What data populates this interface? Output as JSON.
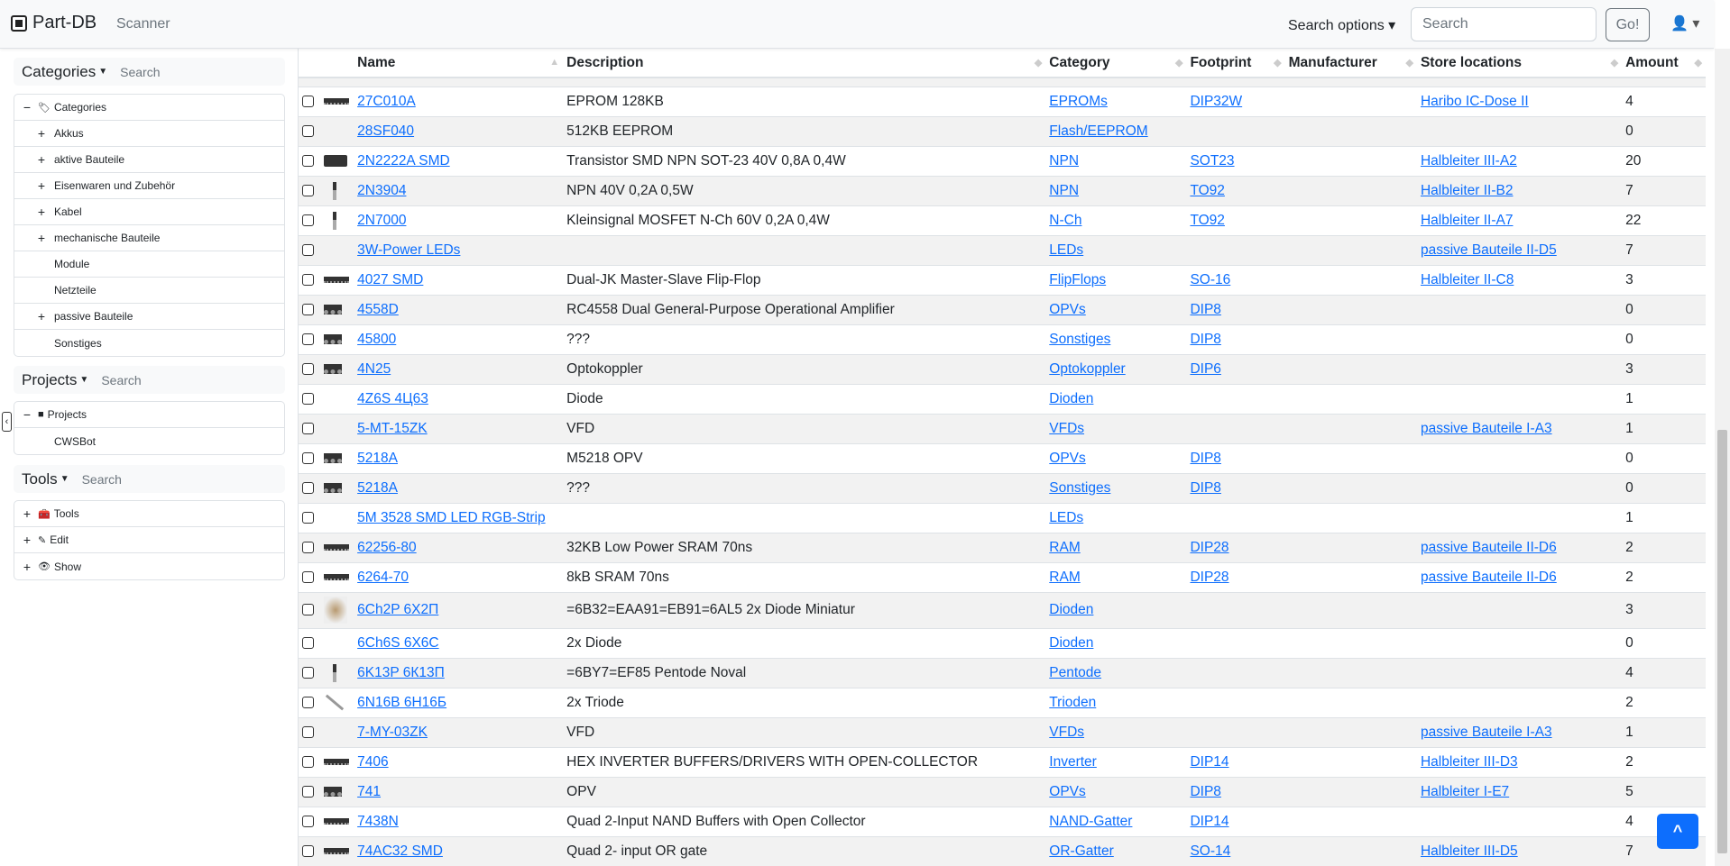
{
  "navbar": {
    "brand": "Part-DB",
    "scanner": "Scanner",
    "search_options": "Search options ▾",
    "search_placeholder": "Search",
    "go": "Go!",
    "user_icon": "user-icon"
  },
  "sidebar": {
    "categories": {
      "title": "Categories",
      "search": "Search",
      "items": [
        {
          "label": "Categories",
          "exp": "−",
          "root": true
        },
        {
          "label": "Akkus",
          "exp": "+"
        },
        {
          "label": "aktive Bauteile",
          "exp": "+"
        },
        {
          "label": "Eisenwaren und Zubehör",
          "exp": "+"
        },
        {
          "label": "Kabel",
          "exp": "+"
        },
        {
          "label": "mechanische Bauteile",
          "exp": "+"
        },
        {
          "label": "Module",
          "exp": ""
        },
        {
          "label": "Netzteile",
          "exp": ""
        },
        {
          "label": "passive Bauteile",
          "exp": "+"
        },
        {
          "label": "Sonstiges",
          "exp": ""
        }
      ]
    },
    "projects": {
      "title": "Projects",
      "search": "Search",
      "items": [
        {
          "label": "Projects",
          "exp": "−",
          "root": true
        },
        {
          "label": "CWSBot",
          "exp": ""
        }
      ]
    },
    "tools": {
      "title": "Tools",
      "search": "Search",
      "items": [
        {
          "label": "Tools",
          "exp": "+",
          "root": true,
          "icon": "🧰"
        },
        {
          "label": "Edit",
          "exp": "+",
          "root": true,
          "icon": "✎"
        },
        {
          "label": "Show",
          "exp": "+",
          "root": true,
          "icon": "👁"
        }
      ]
    }
  },
  "table": {
    "columns": [
      "",
      "",
      "Name",
      "Description",
      "Category",
      "Footprint",
      "Manufacturer",
      "Store locations",
      "Amount"
    ],
    "rows": [
      {
        "thumb": "dip",
        "name": "27C010A",
        "desc": "EPROM 128KB",
        "cat": "EPROMs",
        "fp": "DIP32W",
        "mfr": "",
        "loc": "Haribo IC-Dose II",
        "amount": "4"
      },
      {
        "thumb": "",
        "name": "28SF040",
        "desc": "512KB EEPROM",
        "cat": "Flash/EEPROM",
        "fp": "",
        "mfr": "",
        "loc": "",
        "amount": "0"
      },
      {
        "thumb": "sot",
        "name": "2N2222A SMD",
        "desc": "Transistor SMD NPN SOT-23 40V 0,8A 0,4W",
        "cat": "NPN",
        "fp": "SOT23",
        "mfr": "",
        "loc": "Halbleiter III-A2",
        "amount": "20"
      },
      {
        "thumb": "to92",
        "name": "2N3904",
        "desc": "NPN 40V 0,2A 0,5W",
        "cat": "NPN",
        "fp": "TO92",
        "mfr": "",
        "loc": "Halbleiter II-B2",
        "amount": "7"
      },
      {
        "thumb": "to92",
        "name": "2N7000",
        "desc": "Kleinsignal MOSFET N-Ch 60V 0,2A 0,4W",
        "cat": "N-Ch",
        "fp": "TO92",
        "mfr": "",
        "loc": "Halbleiter II-A7",
        "amount": "22"
      },
      {
        "thumb": "",
        "name": "3W-Power LEDs",
        "desc": "",
        "cat": "LEDs",
        "fp": "",
        "mfr": "",
        "loc": "passive Bauteile II-D5",
        "amount": "7"
      },
      {
        "thumb": "dip",
        "name": "4027 SMD",
        "desc": "Dual-JK Master-Slave Flip-Flop",
        "cat": "FlipFlops",
        "fp": "SO-16",
        "mfr": "",
        "loc": "Halbleiter II-C8",
        "amount": "3"
      },
      {
        "thumb": "dip8",
        "name": "4558D",
        "desc": "RC4558 Dual General-Purpose Operational Amplifier",
        "cat": "OPVs",
        "fp": "DIP8",
        "mfr": "",
        "loc": "",
        "amount": "0"
      },
      {
        "thumb": "dip8",
        "name": "45800",
        "desc": "???",
        "cat": "Sonstiges",
        "fp": "DIP8",
        "mfr": "",
        "loc": "",
        "amount": "0"
      },
      {
        "thumb": "dip8",
        "name": "4N25",
        "desc": "Optokoppler",
        "cat": "Optokoppler",
        "fp": "DIP6",
        "mfr": "",
        "loc": "",
        "amount": "3"
      },
      {
        "thumb": "",
        "name": "4Z6S 4Ц63",
        "desc": "Diode",
        "cat": "Dioden",
        "fp": "",
        "mfr": "",
        "loc": "",
        "amount": "1"
      },
      {
        "thumb": "",
        "name": "5-MT-15ZK",
        "desc": "VFD",
        "cat": "VFDs",
        "fp": "",
        "mfr": "",
        "loc": "passive Bauteile I-A3",
        "amount": "1"
      },
      {
        "thumb": "dip8",
        "name": "5218A",
        "desc": "M5218 OPV",
        "cat": "OPVs",
        "fp": "DIP8",
        "mfr": "",
        "loc": "",
        "amount": "0"
      },
      {
        "thumb": "dip8",
        "name": "5218A",
        "desc": "???",
        "cat": "Sonstiges",
        "fp": "DIP8",
        "mfr": "",
        "loc": "",
        "amount": "0"
      },
      {
        "thumb": "",
        "name": "5M 3528 SMD LED RGB-Strip",
        "desc": "",
        "cat": "LEDs",
        "fp": "",
        "mfr": "",
        "loc": "",
        "amount": "1"
      },
      {
        "thumb": "dip",
        "name": "62256-80",
        "desc": "32KB Low Power SRAM 70ns",
        "cat": "RAM",
        "fp": "DIP28",
        "mfr": "",
        "loc": "passive Bauteile II-D6",
        "amount": "2"
      },
      {
        "thumb": "dip",
        "name": "6264-70",
        "desc": "8kB SRAM 70ns",
        "cat": "RAM",
        "fp": "DIP28",
        "mfr": "",
        "loc": "passive Bauteile II-D6",
        "amount": "2"
      },
      {
        "thumb": "tube",
        "name": "6Ch2P 6Х2П",
        "desc": "=6B32=EAA91=EB91=6AL5 2x Diode Miniatur",
        "cat": "Dioden",
        "fp": "",
        "mfr": "",
        "loc": "",
        "amount": "3"
      },
      {
        "thumb": "",
        "name": "6Ch6S 6Х6С",
        "desc": "2x Diode",
        "cat": "Dioden",
        "fp": "",
        "mfr": "",
        "loc": "",
        "amount": "0"
      },
      {
        "thumb": "to92",
        "name": "6K13P 6К13П",
        "desc": "=6BY7=EF85 Pentode Noval",
        "cat": "Pentode",
        "fp": "",
        "mfr": "",
        "loc": "",
        "amount": "4"
      },
      {
        "thumb": "wire",
        "name": "6N16B 6Н16Б",
        "desc": "2x Triode",
        "cat": "Trioden",
        "fp": "",
        "mfr": "",
        "loc": "",
        "amount": "2"
      },
      {
        "thumb": "",
        "name": "7-MY-03ZK",
        "desc": "VFD",
        "cat": "VFDs",
        "fp": "",
        "mfr": "",
        "loc": "passive Bauteile I-A3",
        "amount": "1"
      },
      {
        "thumb": "dip",
        "name": "7406",
        "desc": "HEX INVERTER BUFFERS/DRIVERS WITH OPEN-COLLECTOR",
        "cat": "Inverter",
        "fp": "DIP14",
        "mfr": "",
        "loc": "Halbleiter III-D3",
        "amount": "2"
      },
      {
        "thumb": "dip8",
        "name": "741",
        "desc": "OPV",
        "cat": "OPVs",
        "fp": "DIP8",
        "mfr": "",
        "loc": "Halbleiter I-E7",
        "amount": "5"
      },
      {
        "thumb": "dip",
        "name": "7438N",
        "desc": "Quad 2-Input NAND Buffers with Open Collector",
        "cat": "NAND-Gatter",
        "fp": "DIP14",
        "mfr": "",
        "loc": "",
        "amount": "4"
      },
      {
        "thumb": "dip",
        "name": "74AC32 SMD",
        "desc": "Quad 2- input OR gate",
        "cat": "OR-Gatter",
        "fp": "SO-14",
        "mfr": "",
        "loc": "Halbleiter III-D5",
        "amount": "7"
      }
    ]
  },
  "back_to_top": "^",
  "collapse_sidebar": "‹"
}
